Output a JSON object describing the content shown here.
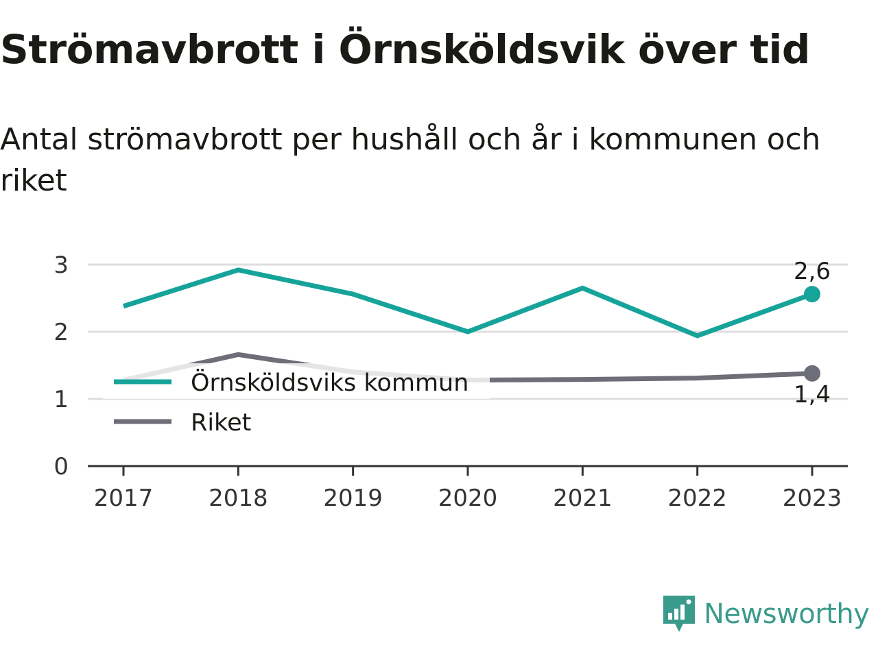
{
  "title": "Strömavbrott i Örnsköldsvik över tid",
  "subtitle": "Antal strömavbrott per hushåll och år i kommunen och riket",
  "brand": {
    "name": "Newsworthy",
    "icon": "newsworthy-logo-icon",
    "color": "#3a9b8c"
  },
  "chart_data": {
    "type": "line",
    "title": "Strömavbrott i Örnsköldsvik över tid",
    "subtitle": "Antal strömavbrott per hushåll och år i kommunen och riket",
    "x": [
      "2017",
      "2018",
      "2019",
      "2020",
      "2021",
      "2022",
      "2023"
    ],
    "y_ticks": [
      "0",
      "1",
      "2",
      "3"
    ],
    "ylim": [
      0,
      3
    ],
    "grid": true,
    "legend_placement": "inside-left",
    "series": [
      {
        "name": "Örnsköldsviks kommun",
        "color": "#16a39a",
        "values": [
          2.38,
          2.92,
          2.56,
          2.0,
          2.65,
          1.94,
          2.56
        ],
        "end_label": "2,6"
      },
      {
        "name": "Riket",
        "color": "#6e6e78",
        "values": [
          1.28,
          1.66,
          1.4,
          1.28,
          1.29,
          1.31,
          1.38
        ],
        "end_label": "1,4"
      }
    ]
  }
}
